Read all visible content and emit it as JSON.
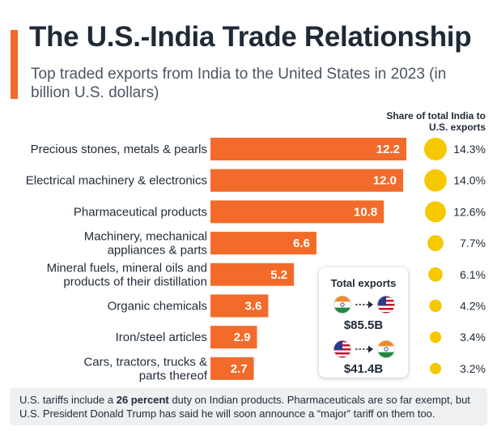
{
  "title": "The U.S.-India Trade Relationship",
  "subtitle": "Top traded exports from India to the United States in 2023 (in billion U.S. dollars)",
  "share_header": "Share of total India to U.S. exports",
  "colors": {
    "bar": "#f26b2a",
    "bubble": "#f5c800",
    "text": "#1f2a37"
  },
  "chart_data": {
    "type": "bar",
    "orientation": "horizontal",
    "title": "The U.S.-India Trade Relationship",
    "subtitle": "Top traded exports from India to the United States in 2023 (in billion U.S. dollars)",
    "categories": [
      [
        "Precious stones, metals & pearls"
      ],
      [
        "Electrical machinery & electronics"
      ],
      [
        "Pharmaceutical products"
      ],
      [
        "Machinery, mechanical",
        "appliances & parts"
      ],
      [
        "Mineral fuels, mineral oils and",
        "products of their distillation"
      ],
      [
        "Organic chemicals"
      ],
      [
        "Iron/steel articles"
      ],
      [
        "Cars, tractors, trucks &",
        "parts thereof"
      ]
    ],
    "values": [
      12.2,
      12.0,
      10.8,
      6.6,
      5.2,
      3.6,
      2.9,
      2.7
    ],
    "value_labels": [
      "12.2",
      "12.0",
      "10.8",
      "6.6",
      "5.2",
      "3.6",
      "2.9",
      "2.7"
    ],
    "share_values": [
      14.3,
      14.0,
      12.6,
      7.7,
      6.1,
      4.2,
      3.4,
      3.2
    ],
    "share_labels": [
      "14.3%",
      "14.0%",
      "12.6%",
      "7.7%",
      "6.1%",
      "4.2%",
      "3.4%",
      "3.2%"
    ],
    "xlim": [
      0,
      12.2
    ]
  },
  "total_exports": {
    "title": "Total exports",
    "india_to_us": "$85.5B",
    "us_to_india": "$41.4B",
    "icons": [
      "india-flag-icon",
      "arrow-right-icon",
      "us-flag-icon"
    ]
  },
  "footer": {
    "pre": "U.S. tariffs include a ",
    "bold": "26 percent",
    "post": " duty on Indian products. Pharmaceuticals are so far exempt, but U.S. President Donald Trump has said he will soon announce a “major” tariff on them too."
  }
}
